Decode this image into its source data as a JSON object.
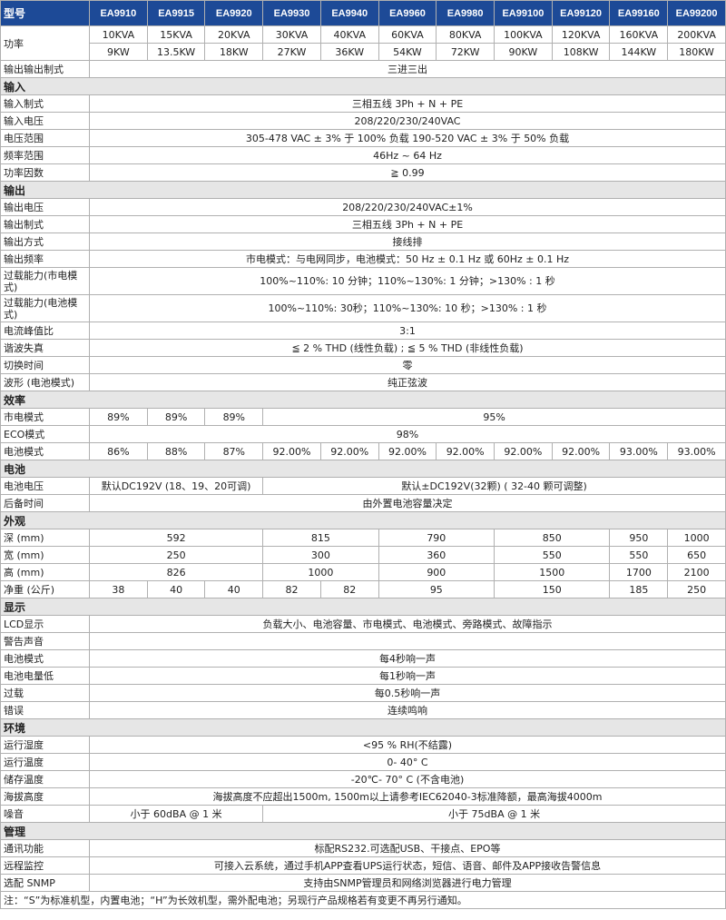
{
  "header": {
    "label": "型号",
    "models": [
      "EA9910",
      "EA9915",
      "EA9920",
      "EA9930",
      "EA9940",
      "EA9960",
      "EA9980",
      "EA99100",
      "EA99120",
      "EA99160",
      "EA99200"
    ]
  },
  "power": {
    "label": "功率",
    "kva": [
      "10KVA",
      "15KVA",
      "20KVA",
      "30KVA",
      "40KVA",
      "60KVA",
      "80KVA",
      "100KVA",
      "120KVA",
      "160KVA",
      "200KVA"
    ],
    "kw": [
      "9KW",
      "13.5KW",
      "18KW",
      "27KW",
      "36KW",
      "54KW",
      "72KW",
      "90KW",
      "108KW",
      "144KW",
      "180KW"
    ]
  },
  "rows": [
    {
      "label": "输出输出制式",
      "cells": [
        {
          "v": "三进三出",
          "span": 11
        }
      ]
    },
    {
      "section": "输入"
    },
    {
      "label": "输入制式",
      "cells": [
        {
          "v": "三相五线 3Ph + N + PE",
          "span": 11
        }
      ]
    },
    {
      "label": "输入电压",
      "cells": [
        {
          "v": "208/220/230/240VAC",
          "span": 11
        }
      ]
    },
    {
      "label": "电压范围",
      "cells": [
        {
          "v": "305-478 VAC ± 3% 于 100% 负载        190-520 VAC ± 3% 于 50% 负载",
          "span": 11
        }
      ]
    },
    {
      "label": "频率范围",
      "cells": [
        {
          "v": "46Hz ~ 64 Hz",
          "span": 11
        }
      ]
    },
    {
      "label": "功率因数",
      "cells": [
        {
          "v": "≧ 0.99",
          "span": 11
        }
      ]
    },
    {
      "section": "输出"
    },
    {
      "label": "输出电压",
      "cells": [
        {
          "v": "208/220/230/240VAC±1%",
          "span": 11
        }
      ]
    },
    {
      "label": "输出制式",
      "cells": [
        {
          "v": "三相五线 3Ph + N + PE",
          "span": 11
        }
      ]
    },
    {
      "label": "输出方式",
      "cells": [
        {
          "v": "接线排",
          "span": 11
        }
      ]
    },
    {
      "label": "输出频率",
      "cells": [
        {
          "v": "市电模式：与电网同步，电池模式：50 Hz ± 0.1 Hz 或 60Hz ± 0.1 Hz",
          "span": 11
        }
      ]
    },
    {
      "label": "过载能力(市电模式)",
      "tall": true,
      "cells": [
        {
          "v": "100%~110%: 10 分钟；110%~130%: 1 分钟；>130% : 1 秒",
          "span": 11
        }
      ]
    },
    {
      "label": "过载能力(电池模式)",
      "tall": true,
      "cells": [
        {
          "v": "100%~110%:   30秒；110%~130%: 10 秒；>130% : 1 秒",
          "span": 11
        }
      ]
    },
    {
      "label": "电流峰值比",
      "cells": [
        {
          "v": "3:1",
          "span": 11
        }
      ]
    },
    {
      "label": "谐波失真",
      "cells": [
        {
          "v": "≦ 2 % THD (线性负载) ; ≦ 5 % THD (非线性负载)",
          "span": 11
        }
      ]
    },
    {
      "label": "切换时间",
      "cells": [
        {
          "v": "零",
          "span": 11
        }
      ]
    },
    {
      "label": "波形 (电池模式)",
      "cells": [
        {
          "v": "纯正弦波",
          "span": 11
        }
      ]
    },
    {
      "section": "效率"
    },
    {
      "label": "市电模式",
      "cells": [
        {
          "v": "89%",
          "span": 1
        },
        {
          "v": "89%",
          "span": 1
        },
        {
          "v": "89%",
          "span": 1
        },
        {
          "v": "95%",
          "span": 8
        }
      ]
    },
    {
      "label": "ECO模式",
      "cells": [
        {
          "v": "98%",
          "span": 11
        }
      ]
    },
    {
      "label": "电池模式",
      "cells": [
        {
          "v": "86%",
          "span": 1
        },
        {
          "v": "88%",
          "span": 1
        },
        {
          "v": "87%",
          "span": 1
        },
        {
          "v": "92.00%",
          "span": 1
        },
        {
          "v": "92.00%",
          "span": 1
        },
        {
          "v": "92.00%",
          "span": 1
        },
        {
          "v": "92.00%",
          "span": 1
        },
        {
          "v": "92.00%",
          "span": 1
        },
        {
          "v": "92.00%",
          "span": 1
        },
        {
          "v": "93.00%",
          "span": 1
        },
        {
          "v": "93.00%",
          "span": 1
        }
      ]
    },
    {
      "section": "电池"
    },
    {
      "label": "电池电压",
      "cells": [
        {
          "v": "默认DC192V (18、19、20可调)",
          "span": 3
        },
        {
          "v": "默认±DC192V(32颗)      ( 32-40 颗可调整)",
          "span": 8
        }
      ]
    },
    {
      "label": "后备时间",
      "cells": [
        {
          "v": "由外置电池容量决定",
          "span": 11
        }
      ]
    },
    {
      "section": "外观"
    },
    {
      "label": "深 (mm)",
      "cells": [
        {
          "v": "592",
          "span": 3
        },
        {
          "v": "815",
          "span": 2
        },
        {
          "v": "790",
          "span": 2
        },
        {
          "v": "850",
          "span": 2
        },
        {
          "v": "950",
          "span": 1
        },
        {
          "v": "1000",
          "span": 1
        }
      ]
    },
    {
      "label": "宽 (mm)",
      "cells": [
        {
          "v": "250",
          "span": 3
        },
        {
          "v": "300",
          "span": 2
        },
        {
          "v": "360",
          "span": 2
        },
        {
          "v": "550",
          "span": 2
        },
        {
          "v": "550",
          "span": 1
        },
        {
          "v": "650",
          "span": 1
        }
      ]
    },
    {
      "label": "高 (mm)",
      "cells": [
        {
          "v": "826",
          "span": 3
        },
        {
          "v": "1000",
          "span": 2
        },
        {
          "v": "900",
          "span": 2
        },
        {
          "v": "1500",
          "span": 2
        },
        {
          "v": "1700",
          "span": 1
        },
        {
          "v": "2100",
          "span": 1
        }
      ]
    },
    {
      "label": "净重 (公斤)",
      "cells": [
        {
          "v": "38",
          "span": 1
        },
        {
          "v": "40",
          "span": 1
        },
        {
          "v": "40",
          "span": 1
        },
        {
          "v": "82",
          "span": 1
        },
        {
          "v": "82",
          "span": 1
        },
        {
          "v": "95",
          "span": 2
        },
        {
          "v": "150",
          "span": 2
        },
        {
          "v": "185",
          "span": 1
        },
        {
          "v": "250",
          "span": 1
        }
      ]
    },
    {
      "section": "显示"
    },
    {
      "label": "LCD显示",
      "cells": [
        {
          "v": "负载大小、电池容量、市电模式、电池模式、旁路模式、故障指示",
          "span": 11
        }
      ]
    },
    {
      "label": "警告声音",
      "cells": [
        {
          "v": "",
          "span": 11
        }
      ]
    },
    {
      "label": "电池模式",
      "cells": [
        {
          "v": "每4秒响一声",
          "span": 11
        }
      ]
    },
    {
      "label": "电池电量低",
      "cells": [
        {
          "v": "每1秒响一声",
          "span": 11
        }
      ]
    },
    {
      "label": "过载",
      "cells": [
        {
          "v": "每0.5秒响一声",
          "span": 11
        }
      ]
    },
    {
      "label": "错误",
      "cells": [
        {
          "v": "连续鸣响",
          "span": 11
        }
      ]
    },
    {
      "section": "环境"
    },
    {
      "label": "运行湿度",
      "cells": [
        {
          "v": "<95 % RH(不结露)",
          "span": 11
        }
      ]
    },
    {
      "label": "运行温度",
      "cells": [
        {
          "v": "0- 40° C",
          "span": 11
        }
      ]
    },
    {
      "label": "储存温度",
      "cells": [
        {
          "v": "-20℃- 70° C (不含电池)",
          "span": 11
        }
      ]
    },
    {
      "label": "海拔高度",
      "cells": [
        {
          "v": "海拔高度不应超出1500m, 1500m以上请参考IEC62040-3标准降额，最高海拔4000m",
          "span": 11
        }
      ]
    },
    {
      "label": "噪音",
      "cells": [
        {
          "v": "小于 60dBA @ 1 米",
          "span": 3
        },
        {
          "v": "小于 75dBA @ 1 米",
          "span": 8
        }
      ]
    },
    {
      "section": "管理"
    },
    {
      "label": "通讯功能",
      "cells": [
        {
          "v": "标配RS232.可选配USB、干接点、EPO等",
          "span": 11
        }
      ]
    },
    {
      "label": "远程监控",
      "cells": [
        {
          "v": "可接入云系统，通过手机APP查看UPS运行状态，短信、语音、邮件及APP接收告警信息",
          "span": 11
        }
      ]
    },
    {
      "label": "选配 SNMP",
      "cells": [
        {
          "v": "支持由SNMP管理员和网络浏览器进行电力管理",
          "span": 11
        }
      ]
    }
  ],
  "note": "注：“S”为标准机型，内置电池；“H”为长效机型，需外配电池；另现行产品规格若有变更不再另行通知。",
  "colors": {
    "header_bg": "#1d4a97",
    "section_bg": "#e6e6e6",
    "border": "#b0b0b0"
  }
}
